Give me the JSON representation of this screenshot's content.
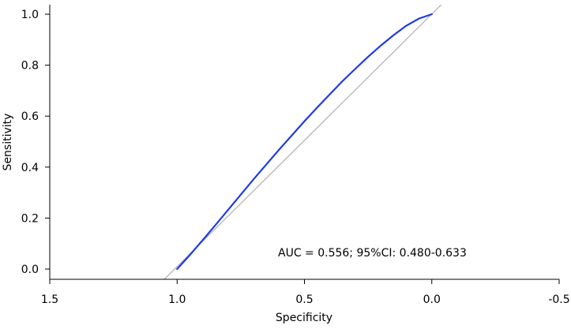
{
  "chart_data": {
    "type": "line",
    "title": "",
    "xlabel": "Specificity",
    "ylabel": "Sensitivity",
    "x_reversed": true,
    "xlim": [
      1.5,
      -0.5
    ],
    "ylim": [
      0.0,
      1.0
    ],
    "x_ticks": [
      1.5,
      1.0,
      0.5,
      0.0,
      -0.5
    ],
    "x_tick_labels": [
      "1.5",
      "1.0",
      "0.5",
      "0.0",
      "-0.5"
    ],
    "y_ticks": [
      0.0,
      0.2,
      0.4,
      0.6,
      0.8,
      1.0
    ],
    "y_tick_labels": [
      "0.0",
      "0.2",
      "0.4",
      "0.6",
      "0.8",
      "1.0"
    ],
    "grid": false,
    "legend": "none",
    "annotation": "AUC = 0.556; 95%CI: 0.480-0.633",
    "series": [
      {
        "x": [
          1.0,
          0.95,
          0.9,
          0.85,
          0.8,
          0.75,
          0.7,
          0.65,
          0.6,
          0.55,
          0.5,
          0.45,
          0.4,
          0.35,
          0.3,
          0.25,
          0.2,
          0.15,
          0.1,
          0.05,
          0.0
        ],
        "y": [
          0.0,
          0.055,
          0.113,
          0.172,
          0.232,
          0.292,
          0.352,
          0.41,
          0.468,
          0.524,
          0.58,
          0.634,
          0.686,
          0.738,
          0.786,
          0.833,
          0.877,
          0.918,
          0.955,
          0.983,
          1.0
        ],
        "color": "#1f3be8"
      }
    ],
    "reference_line": {
      "x": [
        1.05,
        -0.04
      ],
      "y": [
        -0.04,
        1.04
      ],
      "color": "#b0b0b0"
    }
  }
}
